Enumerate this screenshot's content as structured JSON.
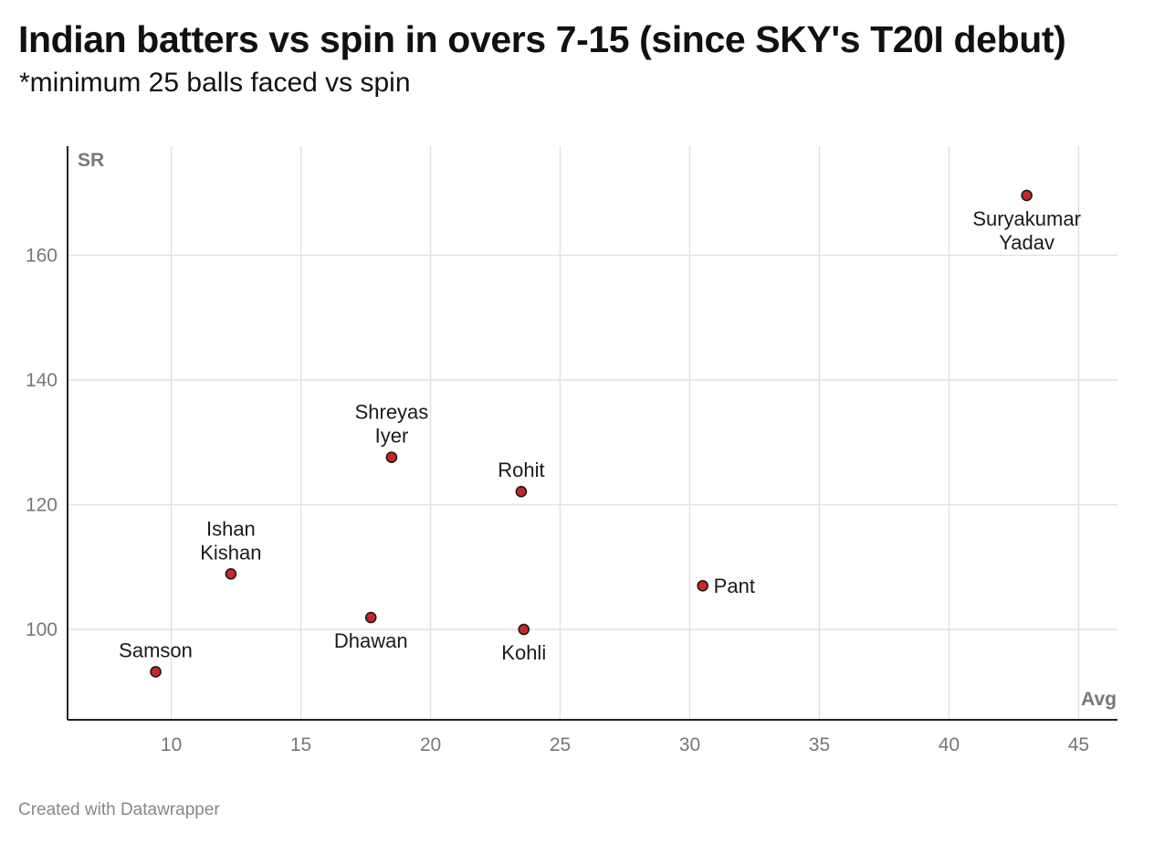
{
  "header": {
    "title": "Indian batters vs spin in overs 7-15 (since SKY's T20I debut)",
    "subtitle": "*minimum 25 balls faced vs spin"
  },
  "footer": {
    "credit": "Created with Datawrapper"
  },
  "chart_data": {
    "type": "scatter",
    "xlabel": "Avg",
    "ylabel": "SR",
    "xlim": [
      6,
      46.5
    ],
    "ylim": [
      85.5,
      177.5
    ],
    "x_ticks": [
      10,
      15,
      20,
      25,
      30,
      35,
      40,
      45
    ],
    "y_ticks": [
      100,
      120,
      140,
      160
    ],
    "grid": true,
    "legend": "none",
    "colors": {
      "point_fill": "#c62828",
      "point_stroke": "#1a1a1a",
      "grid": "#e2e2e2",
      "axis": "#222222"
    },
    "points": [
      {
        "name": "Suryakumar Yadav",
        "label_lines": [
          "Suryakumar",
          "Yadav"
        ],
        "x": 43.0,
        "y": 169.6,
        "label_pos": "below"
      },
      {
        "name": "Shreyas Iyer",
        "label_lines": [
          "Shreyas",
          "Iyer"
        ],
        "x": 18.5,
        "y": 127.6,
        "label_pos": "above"
      },
      {
        "name": "Rohit",
        "label_lines": [
          "Rohit"
        ],
        "x": 23.5,
        "y": 122.1,
        "label_pos": "above"
      },
      {
        "name": "Ishan Kishan",
        "label_lines": [
          "Ishan",
          "Kishan"
        ],
        "x": 12.3,
        "y": 108.9,
        "label_pos": "above"
      },
      {
        "name": "Pant",
        "label_lines": [
          "Pant"
        ],
        "x": 30.5,
        "y": 107.0,
        "label_pos": "right"
      },
      {
        "name": "Dhawan",
        "label_lines": [
          "Dhawan"
        ],
        "x": 17.7,
        "y": 101.9,
        "label_pos": "below"
      },
      {
        "name": "Kohli",
        "label_lines": [
          "Kohli"
        ],
        "x": 23.6,
        "y": 100.0,
        "label_pos": "below"
      },
      {
        "name": "Samson",
        "label_lines": [
          "Samson"
        ],
        "x": 9.4,
        "y": 93.2,
        "label_pos": "above"
      }
    ]
  }
}
